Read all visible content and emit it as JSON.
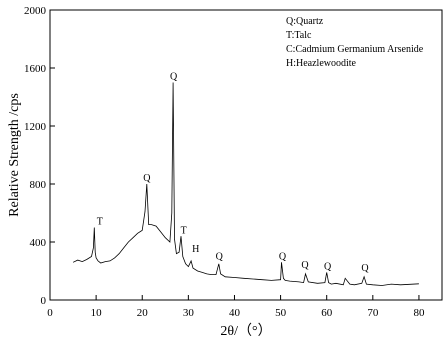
{
  "chart_data": {
    "type": "line",
    "xlabel": "2θ/（°）",
    "ylabel": "Relative Strength /cps",
    "xlim": [
      0,
      85
    ],
    "ylim": [
      0,
      2000
    ],
    "x_ticks": [
      0,
      10,
      20,
      30,
      40,
      50,
      60,
      70,
      80
    ],
    "y_ticks": [
      0,
      400,
      800,
      1200,
      1600,
      2000
    ],
    "grid": false,
    "legend_position": "top-right",
    "legend": [
      "Q:Quartz",
      "T:Talc",
      "C:Cadmium Germanium Arsenide",
      "H:Heazlewoodite"
    ],
    "series": [
      {
        "color": "#000000",
        "x": [
          5,
          6,
          7,
          8,
          9,
          9.4,
          9.6,
          9.8,
          10.0,
          10.4,
          11,
          12,
          13,
          14,
          15,
          16,
          17,
          18,
          19,
          20,
          20.6,
          21.0,
          21.4,
          22,
          23,
          24,
          25,
          26,
          26.4,
          26.7,
          27.0,
          27.4,
          28,
          28.4,
          28.8,
          29.4,
          30,
          30.6,
          31,
          32,
          33,
          34,
          35,
          36,
          36.6,
          37,
          38,
          40,
          42,
          44,
          46,
          48,
          50,
          50.2,
          50.6,
          51,
          52,
          54,
          55,
          55.4,
          56,
          58,
          59.6,
          60.0,
          60.4,
          61,
          62,
          63.6,
          64,
          65,
          66,
          67.6,
          68.1,
          68.6,
          70,
          72,
          74,
          76,
          78,
          80
        ],
        "y": [
          260,
          275,
          265,
          280,
          300,
          360,
          500,
          330,
          290,
          270,
          255,
          265,
          270,
          290,
          320,
          360,
          400,
          430,
          460,
          480,
          610,
          800,
          520,
          520,
          510,
          470,
          430,
          400,
          600,
          1500,
          420,
          320,
          330,
          440,
          300,
          250,
          230,
          270,
          220,
          200,
          190,
          180,
          175,
          175,
          250,
          180,
          160,
          155,
          150,
          145,
          140,
          135,
          140,
          260,
          150,
          135,
          130,
          125,
          120,
          180,
          125,
          115,
          120,
          190,
          120,
          110,
          115,
          105,
          150,
          110,
          105,
          115,
          160,
          110,
          105,
          100,
          110,
          105,
          108,
          112
        ]
      }
    ],
    "annotations": [
      {
        "text": "T",
        "x": 10.8,
        "y": 520
      },
      {
        "text": "Q",
        "x": 21.0,
        "y": 820
      },
      {
        "text": "Q",
        "x": 26.8,
        "y": 1520
      },
      {
        "text": "T",
        "x": 29.0,
        "y": 460
      },
      {
        "text": "H",
        "x": 31.6,
        "y": 330
      },
      {
        "text": "Q",
        "x": 36.7,
        "y": 280
      },
      {
        "text": "Q",
        "x": 50.4,
        "y": 280
      },
      {
        "text": "Q",
        "x": 55.3,
        "y": 220
      },
      {
        "text": "Q",
        "x": 60.2,
        "y": 210
      },
      {
        "text": "Q",
        "x": 68.3,
        "y": 200
      }
    ]
  }
}
